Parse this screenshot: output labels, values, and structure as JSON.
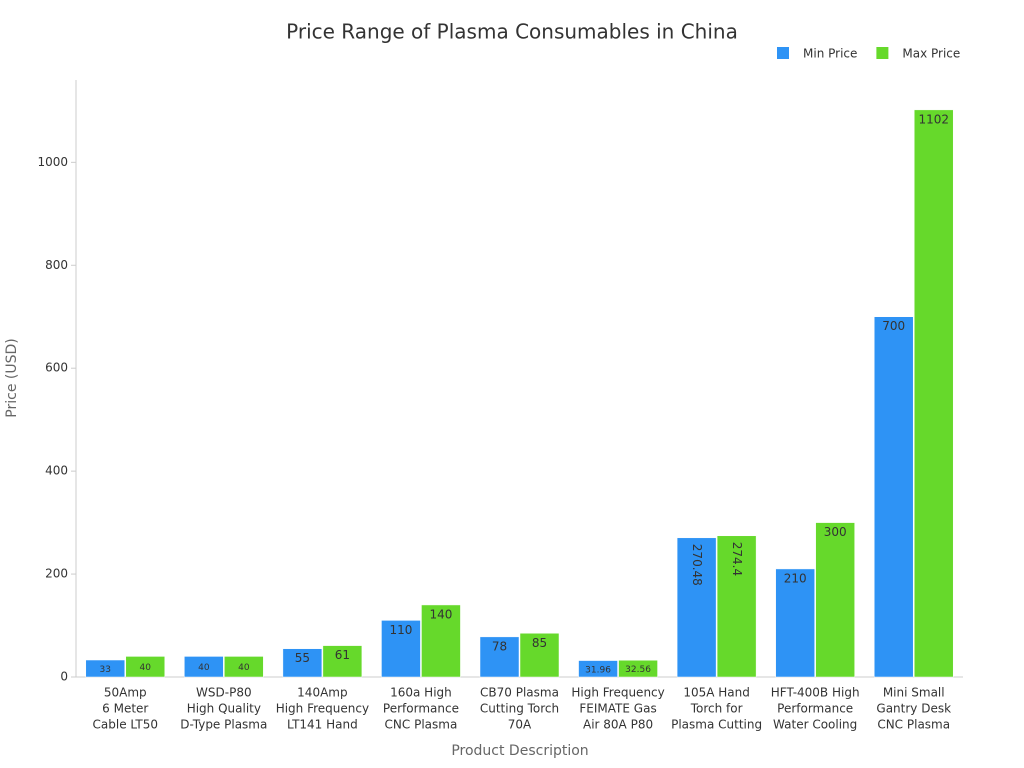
{
  "chart_data": {
    "type": "bar",
    "title": "Price Range of Plasma Consumables in China",
    "x_label": "Product Description",
    "y_label": "Price (USD)",
    "categories": [
      [
        "50Amp",
        "6 Meter",
        "Cable LT50"
      ],
      [
        "WSD-P80",
        "High Quality",
        "D-Type Plasma"
      ],
      [
        "140Amp",
        "High Frequency",
        "LT141 Hand"
      ],
      [
        "160a High",
        "Performance",
        "CNC Plasma"
      ],
      [
        "CB70 Plasma",
        "Cutting Torch",
        "70A"
      ],
      [
        "High Frequency",
        "FEIMATE Gas",
        "Air 80A P80"
      ],
      [
        "105A Hand",
        "Torch for",
        "Plasma Cutting"
      ],
      [
        "HFT-400B High",
        "Performance",
        "Water Cooling"
      ],
      [
        "Mini Small",
        "Gantry Desk",
        "CNC Plasma"
      ]
    ],
    "series": [
      {
        "name": "Min Price",
        "color": "#2e93f5",
        "values": [
          33,
          40,
          55,
          110,
          78,
          31.96,
          270.48,
          210,
          700
        ]
      },
      {
        "name": "Max Price",
        "color": "#66d92b",
        "values": [
          40,
          40,
          61,
          140,
          85,
          32.56,
          274.4,
          300,
          1102
        ]
      }
    ],
    "ylim": [
      0,
      1160
    ],
    "yticks": [
      0,
      200,
      400,
      600,
      800,
      1000
    ],
    "legend": "top-right"
  }
}
